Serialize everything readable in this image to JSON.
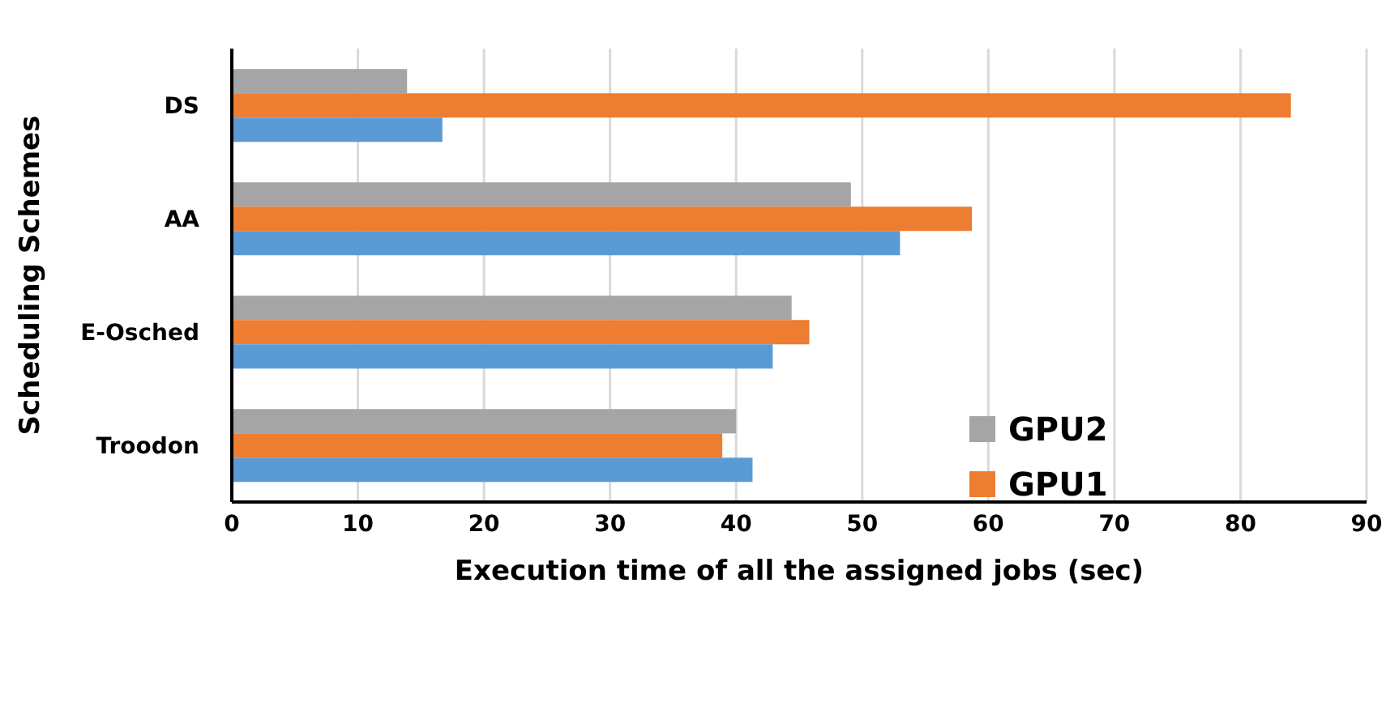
{
  "chart_data": {
    "type": "bar",
    "orientation": "horizontal",
    "xlabel": "Execution time of all the assigned jobs (sec)",
    "ylabel": "Scheduling Schemes",
    "categories": [
      "DS",
      "AA",
      "E-Osched",
      "Troodon"
    ],
    "series": [
      {
        "name": "GPU2",
        "color": "#a5a5a5",
        "values": [
          13.9,
          49.1,
          44.4,
          40.0
        ]
      },
      {
        "name": "GPU1",
        "color": "#ed7d31",
        "values": [
          84.0,
          58.7,
          45.8,
          38.9
        ]
      },
      {
        "color": "#5b9bd5",
        "values": [
          16.7,
          53.0,
          42.9,
          41.3
        ]
      }
    ],
    "xlim": [
      0,
      90
    ],
    "xticks": [
      0,
      10,
      20,
      30,
      40,
      50,
      60,
      70,
      80,
      90
    ],
    "grid": "x",
    "legend": "right"
  }
}
